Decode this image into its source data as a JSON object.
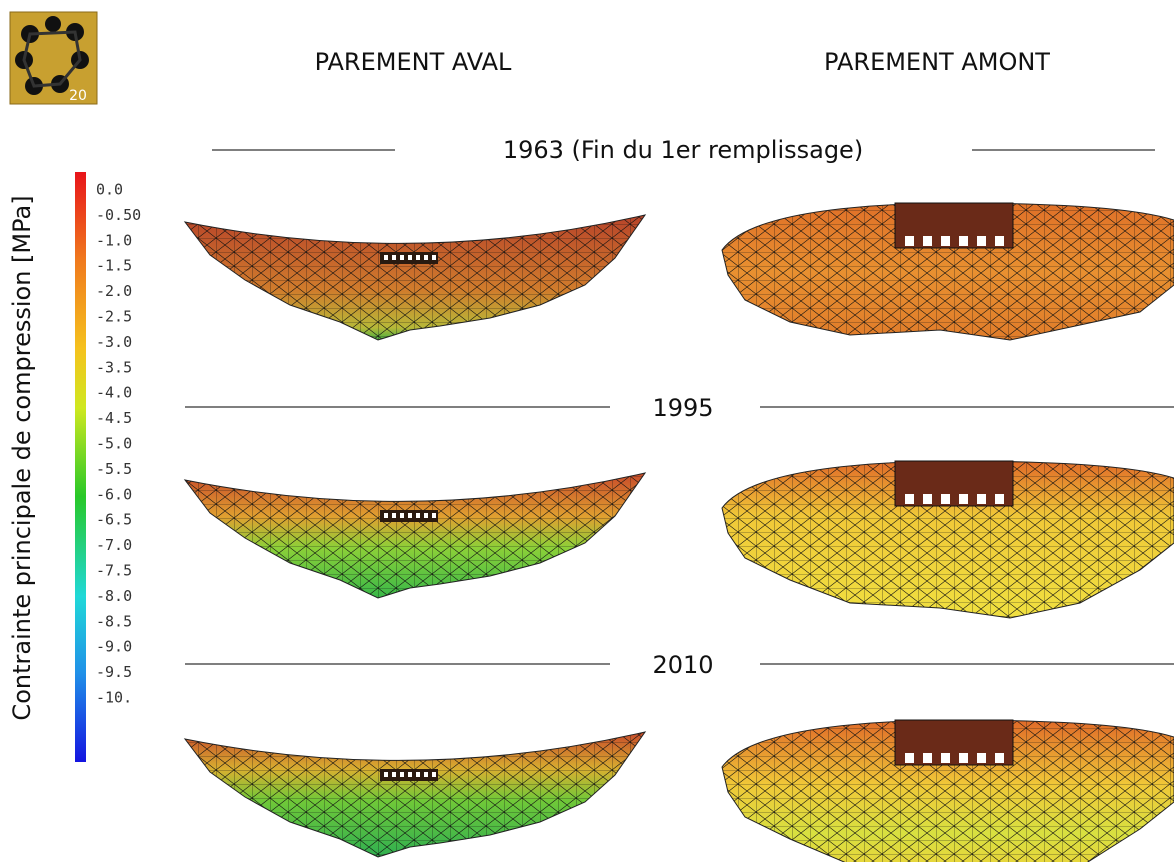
{
  "logo_badge": "20",
  "columns": [
    "PAREMENT AVAL",
    "PAREMENT AMONT"
  ],
  "rows": [
    "1963 (Fin du 1er remplissage)",
    "1995",
    "2010"
  ],
  "colorbar": {
    "title": "Contrainte principale de compression [MPa]",
    "labels": [
      "0.0",
      "-0.50",
      "-1.0",
      "-1.5",
      "-2.0",
      "-2.5",
      "-3.0",
      "-3.5",
      "-4.0",
      "-4.5",
      "-5.0",
      "-5.5",
      "-6.0",
      "-6.5",
      "-7.0",
      "-7.5",
      "-8.0",
      "-8.5",
      "-9.0",
      "-9.5",
      "-10."
    ]
  }
}
